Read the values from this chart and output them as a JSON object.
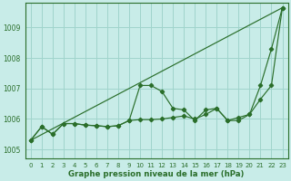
{
  "title": "",
  "xlabel": "Graphe pression niveau de la mer (hPa)",
  "ylabel": "",
  "bg_color": "#c8ece8",
  "grid_color": "#a0d4cc",
  "line_color": "#2a6e2a",
  "xlim": [
    -0.5,
    23.5
  ],
  "ylim": [
    1004.7,
    1009.8
  ],
  "yticks": [
    1005,
    1006,
    1007,
    1008,
    1009
  ],
  "xticks": [
    0,
    1,
    2,
    3,
    4,
    5,
    6,
    7,
    8,
    9,
    10,
    11,
    12,
    13,
    14,
    15,
    16,
    17,
    18,
    19,
    20,
    21,
    22,
    23
  ],
  "series1_x": [
    0,
    1,
    2,
    3,
    4,
    5,
    6,
    7,
    8,
    9,
    10,
    11,
    12,
    13,
    14,
    15,
    16,
    17,
    18,
    19,
    20,
    21,
    22,
    23
  ],
  "series1_y": [
    1005.3,
    1005.75,
    1005.5,
    1005.85,
    1005.85,
    1005.8,
    1005.78,
    1005.75,
    1005.78,
    1005.95,
    1007.1,
    1007.1,
    1006.9,
    1006.35,
    1006.3,
    1005.95,
    1006.3,
    1006.35,
    1005.95,
    1005.95,
    1006.15,
    1007.1,
    1008.3,
    1009.65
  ],
  "series2_x": [
    0,
    1,
    2,
    3,
    4,
    5,
    6,
    7,
    8,
    9,
    10,
    11,
    12,
    13,
    14,
    15,
    16,
    17,
    18,
    19,
    20,
    21,
    22,
    23
  ],
  "series2_y": [
    1005.3,
    1005.75,
    1005.5,
    1005.85,
    1005.85,
    1005.8,
    1005.78,
    1005.75,
    1005.78,
    1005.95,
    1005.98,
    1005.98,
    1006.0,
    1006.05,
    1006.1,
    1006.0,
    1006.15,
    1006.35,
    1005.95,
    1006.05,
    1006.15,
    1006.65,
    1007.1,
    1009.65
  ],
  "series3_x": [
    0,
    23
  ],
  "series3_y": [
    1005.3,
    1009.65
  ]
}
